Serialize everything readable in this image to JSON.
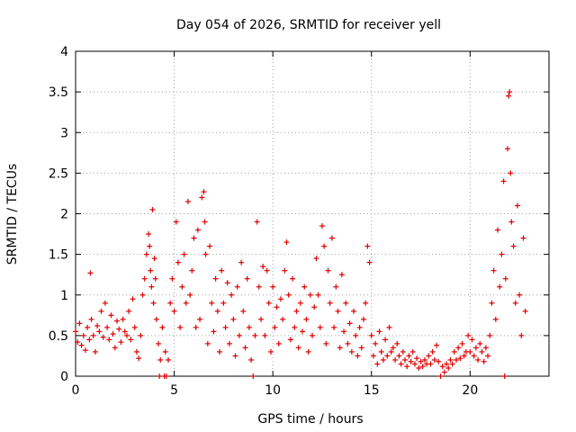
{
  "chart_data": {
    "type": "scatter",
    "title": "Day 054 of 2026, SRMTID for receiver yell",
    "xlabel": "GPS time / hours",
    "ylabel": "SRMTID / TECUs",
    "xlim": [
      0,
      24
    ],
    "ylim": [
      0,
      4
    ],
    "x_ticks": [
      0,
      5,
      10,
      15,
      20
    ],
    "x_tick_labels": [
      "0",
      "5",
      "10",
      "15",
      "20"
    ],
    "y_ticks": [
      0,
      0.5,
      1,
      1.5,
      2,
      2.5,
      3,
      3.5,
      4
    ],
    "y_tick_labels": [
      "0",
      "0.5",
      "1",
      "1.5",
      "2",
      "2.5",
      "3",
      "3.5",
      "4"
    ],
    "grid": true,
    "marker": "+",
    "color": "#e00000",
    "series": [
      {
        "name": "SRMTID",
        "points": [
          [
            0.0,
            0.55
          ],
          [
            0.1,
            0.42
          ],
          [
            0.2,
            0.65
          ],
          [
            0.3,
            0.38
          ],
          [
            0.4,
            0.5
          ],
          [
            0.5,
            0.32
          ],
          [
            0.6,
            0.6
          ],
          [
            0.7,
            0.45
          ],
          [
            0.75,
            1.27
          ],
          [
            0.8,
            0.7
          ],
          [
            0.9,
            0.5
          ],
          [
            1.0,
            0.3
          ],
          [
            1.1,
            0.62
          ],
          [
            1.2,
            0.55
          ],
          [
            1.3,
            0.8
          ],
          [
            1.4,
            0.48
          ],
          [
            1.5,
            0.9
          ],
          [
            1.6,
            0.6
          ],
          [
            1.7,
            0.45
          ],
          [
            1.8,
            0.75
          ],
          [
            1.9,
            0.52
          ],
          [
            2.0,
            0.35
          ],
          [
            2.1,
            0.68
          ],
          [
            2.2,
            0.58
          ],
          [
            2.3,
            0.42
          ],
          [
            2.4,
            0.7
          ],
          [
            2.5,
            0.55
          ],
          [
            2.6,
            0.5
          ],
          [
            2.7,
            0.8
          ],
          [
            2.8,
            0.45
          ],
          [
            2.9,
            0.95
          ],
          [
            3.0,
            0.6
          ],
          [
            3.1,
            0.3
          ],
          [
            3.2,
            0.22
          ],
          [
            3.3,
            0.5
          ],
          [
            3.4,
            1.0
          ],
          [
            3.5,
            1.2
          ],
          [
            3.6,
            1.5
          ],
          [
            3.7,
            1.75
          ],
          [
            3.75,
            1.6
          ],
          [
            3.8,
            1.3
          ],
          [
            3.85,
            1.1
          ],
          [
            3.9,
            2.05
          ],
          [
            3.95,
            0.9
          ],
          [
            4.0,
            1.45
          ],
          [
            4.05,
            1.2
          ],
          [
            4.1,
            0.7
          ],
          [
            4.2,
            0.4
          ],
          [
            4.25,
            0.0
          ],
          [
            4.3,
            0.2
          ],
          [
            4.4,
            0.6
          ],
          [
            4.5,
            0.0
          ],
          [
            4.55,
            0.3
          ],
          [
            4.6,
            0.0
          ],
          [
            4.7,
            0.2
          ],
          [
            4.8,
            0.9
          ],
          [
            4.9,
            1.2
          ],
          [
            5.0,
            0.8
          ],
          [
            5.1,
            1.9
          ],
          [
            5.2,
            1.4
          ],
          [
            5.3,
            0.6
          ],
          [
            5.4,
            1.1
          ],
          [
            5.5,
            1.5
          ],
          [
            5.6,
            0.9
          ],
          [
            5.7,
            2.15
          ],
          [
            5.8,
            1.0
          ],
          [
            5.9,
            1.3
          ],
          [
            6.0,
            1.7
          ],
          [
            6.1,
            0.6
          ],
          [
            6.2,
            1.8
          ],
          [
            6.3,
            0.7
          ],
          [
            6.4,
            2.2
          ],
          [
            6.5,
            2.27
          ],
          [
            6.55,
            1.9
          ],
          [
            6.6,
            1.5
          ],
          [
            6.7,
            0.4
          ],
          [
            6.8,
            1.6
          ],
          [
            6.9,
            0.9
          ],
          [
            7.0,
            0.55
          ],
          [
            7.1,
            1.2
          ],
          [
            7.2,
            0.8
          ],
          [
            7.3,
            0.3
          ],
          [
            7.4,
            1.3
          ],
          [
            7.5,
            0.9
          ],
          [
            7.6,
            0.6
          ],
          [
            7.7,
            1.15
          ],
          [
            7.8,
            0.4
          ],
          [
            7.9,
            1.0
          ],
          [
            8.0,
            0.7
          ],
          [
            8.1,
            0.25
          ],
          [
            8.2,
            1.1
          ],
          [
            8.3,
            0.5
          ],
          [
            8.4,
            1.4
          ],
          [
            8.5,
            0.8
          ],
          [
            8.6,
            0.35
          ],
          [
            8.7,
            1.2
          ],
          [
            8.8,
            0.6
          ],
          [
            8.9,
            0.2
          ],
          [
            9.0,
            0.0
          ],
          [
            9.1,
            0.5
          ],
          [
            9.2,
            1.9
          ],
          [
            9.3,
            1.1
          ],
          [
            9.4,
            0.7
          ],
          [
            9.5,
            1.35
          ],
          [
            9.6,
            0.5
          ],
          [
            9.7,
            1.3
          ],
          [
            9.8,
            0.9
          ],
          [
            9.9,
            0.3
          ],
          [
            10.0,
            1.1
          ],
          [
            10.1,
            0.6
          ],
          [
            10.2,
            0.85
          ],
          [
            10.3,
            0.4
          ],
          [
            10.4,
            0.95
          ],
          [
            10.5,
            0.7
          ],
          [
            10.6,
            1.3
          ],
          [
            10.7,
            1.65
          ],
          [
            10.8,
            1.0
          ],
          [
            10.9,
            0.45
          ],
          [
            11.0,
            1.2
          ],
          [
            11.1,
            0.6
          ],
          [
            11.2,
            0.8
          ],
          [
            11.3,
            0.35
          ],
          [
            11.4,
            0.9
          ],
          [
            11.5,
            0.55
          ],
          [
            11.6,
            1.1
          ],
          [
            11.7,
            0.7
          ],
          [
            11.8,
            0.3
          ],
          [
            11.9,
            1.0
          ],
          [
            12.0,
            0.5
          ],
          [
            12.1,
            0.85
          ],
          [
            12.2,
            1.45
          ],
          [
            12.3,
            1.0
          ],
          [
            12.4,
            0.6
          ],
          [
            12.5,
            1.85
          ],
          [
            12.6,
            1.6
          ],
          [
            12.7,
            0.4
          ],
          [
            12.8,
            1.3
          ],
          [
            12.9,
            0.9
          ],
          [
            13.0,
            1.7
          ],
          [
            13.1,
            0.6
          ],
          [
            13.2,
            1.1
          ],
          [
            13.3,
            0.8
          ],
          [
            13.4,
            0.35
          ],
          [
            13.5,
            1.25
          ],
          [
            13.6,
            0.55
          ],
          [
            13.7,
            0.9
          ],
          [
            13.8,
            0.4
          ],
          [
            13.9,
            0.65
          ],
          [
            14.0,
            0.3
          ],
          [
            14.1,
            0.8
          ],
          [
            14.2,
            0.5
          ],
          [
            14.3,
            0.25
          ],
          [
            14.4,
            0.6
          ],
          [
            14.5,
            0.35
          ],
          [
            14.6,
            0.7
          ],
          [
            14.7,
            0.9
          ],
          [
            14.8,
            1.6
          ],
          [
            14.9,
            1.4
          ],
          [
            15.0,
            0.5
          ],
          [
            15.1,
            0.25
          ],
          [
            15.2,
            0.4
          ],
          [
            15.3,
            0.15
          ],
          [
            15.4,
            0.55
          ],
          [
            15.5,
            0.3
          ],
          [
            15.6,
            0.2
          ],
          [
            15.7,
            0.45
          ],
          [
            15.8,
            0.25
          ],
          [
            15.9,
            0.6
          ],
          [
            16.0,
            0.3
          ],
          [
            16.1,
            0.35
          ],
          [
            16.2,
            0.2
          ],
          [
            16.3,
            0.4
          ],
          [
            16.4,
            0.25
          ],
          [
            16.5,
            0.15
          ],
          [
            16.6,
            0.3
          ],
          [
            16.7,
            0.2
          ],
          [
            16.8,
            0.12
          ],
          [
            16.9,
            0.25
          ],
          [
            17.0,
            0.18
          ],
          [
            17.1,
            0.3
          ],
          [
            17.2,
            0.15
          ],
          [
            17.3,
            0.22
          ],
          [
            17.4,
            0.1
          ],
          [
            17.5,
            0.18
          ],
          [
            17.6,
            0.12
          ],
          [
            17.7,
            0.2
          ],
          [
            17.8,
            0.15
          ],
          [
            17.9,
            0.25
          ],
          [
            18.0,
            0.15
          ],
          [
            18.1,
            0.3
          ],
          [
            18.2,
            0.2
          ],
          [
            18.3,
            0.38
          ],
          [
            18.4,
            0.18
          ],
          [
            18.5,
            0.0
          ],
          [
            18.6,
            0.12
          ],
          [
            18.7,
            0.05
          ],
          [
            18.8,
            0.15
          ],
          [
            18.9,
            0.1
          ],
          [
            19.0,
            0.2
          ],
          [
            19.1,
            0.15
          ],
          [
            19.2,
            0.3
          ],
          [
            19.3,
            0.2
          ],
          [
            19.4,
            0.35
          ],
          [
            19.5,
            0.22
          ],
          [
            19.6,
            0.4
          ],
          [
            19.7,
            0.25
          ],
          [
            19.8,
            0.3
          ],
          [
            19.9,
            0.5
          ],
          [
            20.0,
            0.3
          ],
          [
            20.1,
            0.45
          ],
          [
            20.2,
            0.25
          ],
          [
            20.3,
            0.35
          ],
          [
            20.4,
            0.2
          ],
          [
            20.5,
            0.4
          ],
          [
            20.6,
            0.3
          ],
          [
            20.7,
            0.18
          ],
          [
            20.8,
            0.35
          ],
          [
            20.9,
            0.25
          ],
          [
            21.0,
            0.5
          ],
          [
            21.1,
            0.9
          ],
          [
            21.2,
            1.3
          ],
          [
            21.3,
            0.7
          ],
          [
            21.4,
            1.8
          ],
          [
            21.5,
            1.1
          ],
          [
            21.6,
            1.5
          ],
          [
            21.7,
            2.4
          ],
          [
            21.75,
            0.0
          ],
          [
            21.8,
            1.2
          ],
          [
            21.9,
            2.8
          ],
          [
            21.95,
            3.45
          ],
          [
            22.0,
            3.5
          ],
          [
            22.05,
            2.5
          ],
          [
            22.1,
            1.9
          ],
          [
            22.2,
            1.6
          ],
          [
            22.3,
            0.9
          ],
          [
            22.4,
            2.1
          ],
          [
            22.5,
            1.0
          ],
          [
            22.6,
            0.5
          ],
          [
            22.7,
            1.7
          ],
          [
            22.8,
            0.8
          ]
        ]
      }
    ]
  }
}
